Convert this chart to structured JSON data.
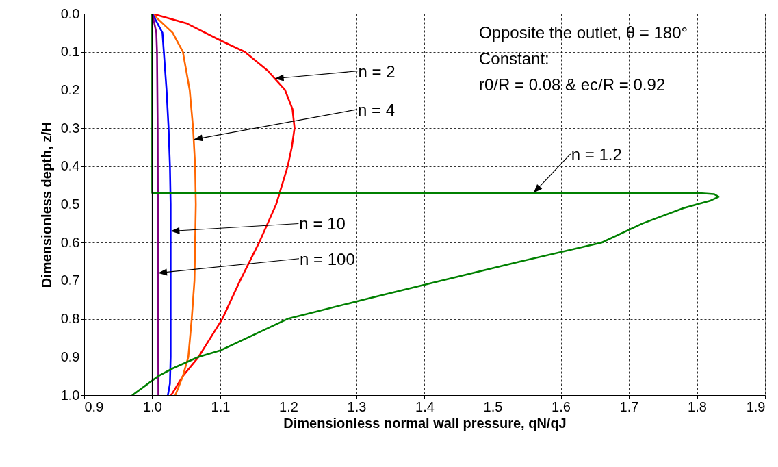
{
  "chart_data": {
    "type": "line",
    "xlabel": "Dimensionless normal wall pressure, qN/qJ",
    "ylabel": "Dimensionless depth, z/H",
    "xlim": [
      0.9,
      1.9
    ],
    "xticks": [
      0.9,
      {
        "value": 1,
        "label": "1.0"
      },
      1.1,
      1.2,
      1.3,
      1.4,
      1.5,
      1.6,
      1.7,
      1.8,
      1.9
    ],
    "ylim": [
      1,
      0
    ],
    "yticks": [
      {
        "value": 0,
        "label": "0.0"
      },
      0.1,
      0.2,
      0.3,
      0.4,
      0.5,
      0.6,
      0.7,
      0.8,
      0.9,
      {
        "value": 1,
        "label": "1.0"
      }
    ],
    "grid": true,
    "line_style": "solid",
    "marker": "none",
    "ref_lines": [
      {
        "axis": "x",
        "value": 1.0,
        "color": "#000000"
      }
    ],
    "series": [
      {
        "color": "#ff0000",
        "x": [
          1.0,
          1.05,
          1.1,
          1.136,
          1.17,
          1.195,
          1.206,
          1.209,
          1.205,
          1.199,
          1.182,
          1.157,
          1.129,
          1.103,
          1.068,
          1.045,
          1.028
        ],
        "values": [
          0,
          0.025,
          0.07,
          0.1,
          0.15,
          0.2,
          0.25,
          0.3,
          0.35,
          0.4,
          0.5,
          0.6,
          0.7,
          0.8,
          0.9,
          0.95,
          1.0
        ]
      },
      {
        "color": "#ff6600",
        "x": [
          1.0,
          1.012,
          1.03,
          1.045,
          1.055,
          1.06,
          1.063,
          1.064,
          1.063,
          1.062,
          1.058,
          1.053,
          1.045,
          1.034
        ],
        "values": [
          0,
          0.02,
          0.05,
          0.1,
          0.2,
          0.3,
          0.4,
          0.5,
          0.6,
          0.7,
          0.8,
          0.9,
          0.95,
          1.0
        ]
      },
      {
        "color": "#0000ff",
        "x": [
          1.0,
          1.015,
          1.017,
          1.021,
          1.024,
          1.026,
          1.027,
          1.027,
          1.026,
          1.023
        ],
        "values": [
          0,
          0.05,
          0.1,
          0.2,
          0.3,
          0.4,
          0.5,
          0.9,
          0.97,
          1.0
        ]
      },
      {
        "color": "#800080",
        "x": [
          1.0,
          1.006,
          1.007,
          1.008,
          1.009
        ],
        "values": [
          0,
          0.05,
          0.1,
          0.3,
          1.0
        ]
      },
      {
        "color": "#008000",
        "x": [
          1.0,
          1.0,
          1.8,
          1.825,
          1.832,
          1.82,
          1.78,
          1.72,
          1.66,
          1.54,
          1.424,
          1.31,
          1.199,
          1.1,
          1.068,
          1.03,
          1.009,
          0.971
        ],
        "values": [
          0,
          0.47,
          0.47,
          0.473,
          0.48,
          0.49,
          0.51,
          0.55,
          0.6,
          0.65,
          0.7,
          0.75,
          0.8,
          0.883,
          0.9,
          0.93,
          0.95,
          1.0
        ]
      }
    ],
    "annotations": [
      "Opposite the outlet, θ = 180°",
      "Constant:",
      "r0/R = 0.08 & ec/R = 0.92",
      "n = 2",
      "n = 4",
      {
        "text": "n = 1.2",
        "x": 1.56,
        "y": 0.47
      },
      "n = 10",
      "n = 100"
    ]
  }
}
